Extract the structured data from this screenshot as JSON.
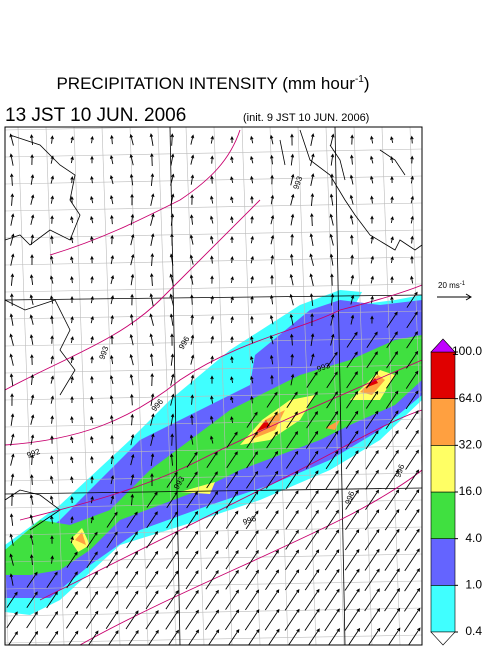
{
  "header": {
    "title": "PRECIPITATION INTENSITY (mm hour",
    "title_sup": "-1",
    "title_end": ")",
    "valid_time": "13 JST 10 JUN. 2006",
    "init_time": "(init. 9 JST 10 JUN. 2006)"
  },
  "wind_scale": {
    "label": "20 ms",
    "sup": "-1"
  },
  "colorbar": {
    "levels": [
      {
        "value": 0.4,
        "label": "0.4"
      },
      {
        "value": 1,
        "label": "1.0"
      },
      {
        "value": 4,
        "label": "4.0"
      },
      {
        "value": 16,
        "label": "16.0"
      },
      {
        "value": 32,
        "label": "32.0"
      },
      {
        "value": 64,
        "label": "64.0"
      },
      {
        "value": 100,
        "label": "100.0"
      }
    ],
    "colors": [
      "#40ffff",
      "#6464ff",
      "#40e040",
      "#ffff64",
      "#ffa040",
      "#e00000"
    ],
    "under_color": "#ffffff",
    "over_color": "#c000ff"
  },
  "contour_labels": [
    "993",
    "993",
    "996",
    "993",
    "996",
    "992",
    "993",
    "996",
    "996",
    "996"
  ]
}
